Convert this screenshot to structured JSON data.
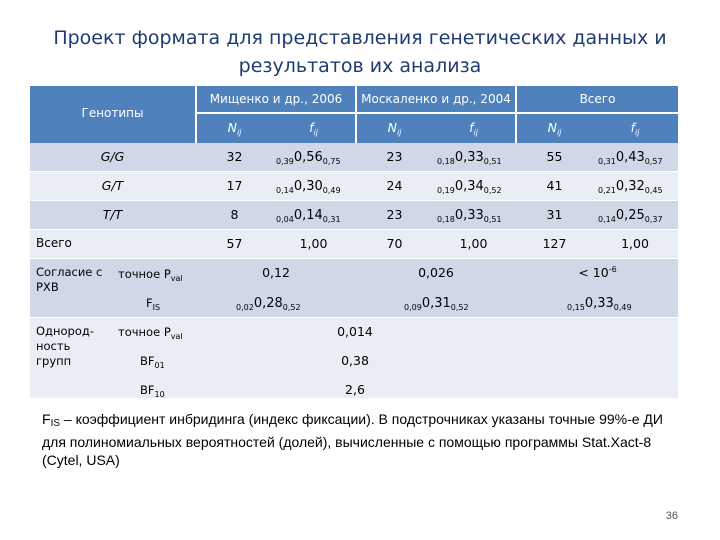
{
  "title": {
    "line1": "Проект формата для представления генетических данных и",
    "line2": "результатов их анализа"
  },
  "header": {
    "genotypes": "Генотипы",
    "groups": [
      "Мищенко и др., 2006",
      "Москаленко и др., 2004",
      "Всего"
    ],
    "N_label": "N",
    "f_label": "f",
    "sub_ij": "ij"
  },
  "rows": [
    {
      "label": "G/G",
      "g1_N": "32",
      "g1_lo": "0,39",
      "g1_mid": "0,56",
      "g1_hi": "0,75",
      "g2_N": "23",
      "g2_lo": "0,18",
      "g2_mid": "0,33",
      "g2_hi": "0,51",
      "g3_N": "55",
      "g3_lo": "0,31",
      "g3_mid": "0,43",
      "g3_hi": "0,57"
    },
    {
      "label": "G/T",
      "g1_N": "17",
      "g1_lo": "0,14",
      "g1_mid": "0,30",
      "g1_hi": "0,49",
      "g2_N": "24",
      "g2_lo": "0,19",
      "g2_mid": "0,34",
      "g2_hi": "0,52",
      "g3_N": "41",
      "g3_lo": "0,21",
      "g3_mid": "0,32",
      "g3_hi": "0,45"
    },
    {
      "label": "T/T",
      "g1_N": "8",
      "g1_lo": "0,04",
      "g1_mid": "0,14",
      "g1_hi": "0,31",
      "g2_N": "23",
      "g2_lo": "0,18",
      "g2_mid": "0,33",
      "g2_hi": "0,51",
      "g3_N": "31",
      "g3_lo": "0,14",
      "g3_mid": "0,25",
      "g3_hi": "0,37"
    }
  ],
  "total": {
    "label": "Всего",
    "g1_N": "57",
    "g1_f": "1,00",
    "g2_N": "70",
    "g2_f": "1,00",
    "g3_N": "127",
    "g3_f": "1,00"
  },
  "hwe": {
    "label": "Согласие с РХВ",
    "exact_label": "точное P",
    "exact_sub": "val",
    "exact_values": [
      "0,12",
      "0,026",
      "< 10"
    ],
    "exp": "-6",
    "fis_label": "F",
    "fis_sub": "IS",
    "fis": [
      {
        "lo": "0,02",
        "mid": "0,28",
        "hi": "0,52"
      },
      {
        "lo": "0,09",
        "mid": "0,31",
        "hi": "0,52"
      },
      {
        "lo": "0,15",
        "mid": "0,33",
        "hi": "0,49"
      }
    ]
  },
  "homog": {
    "label": "Однород-ность групп",
    "exact_label": "точное P",
    "exact_sub": "val",
    "exact_value": "0,014",
    "bf01_label": "BF",
    "bf01_sub": "01",
    "bf01_value": "0,38",
    "bf10_label": "BF",
    "bf10_sub": "10",
    "bf10_value": "2,6"
  },
  "footnote": {
    "F": "F",
    "sub": "IS",
    "text": " – коэффициент инбридинга (индекс фиксации). В подстрочниках указаны точные 99%-е ДИ для полиномиальных вероятностей (долей), вычисленные с помощью программы Stat.Xact-8 (Cytel, USA)"
  },
  "page_number": "36",
  "colors": {
    "header": "#4f81bd",
    "row_dark": "#d0d8e8",
    "row_light": "#e9edf4",
    "title": "#1f3c70"
  }
}
